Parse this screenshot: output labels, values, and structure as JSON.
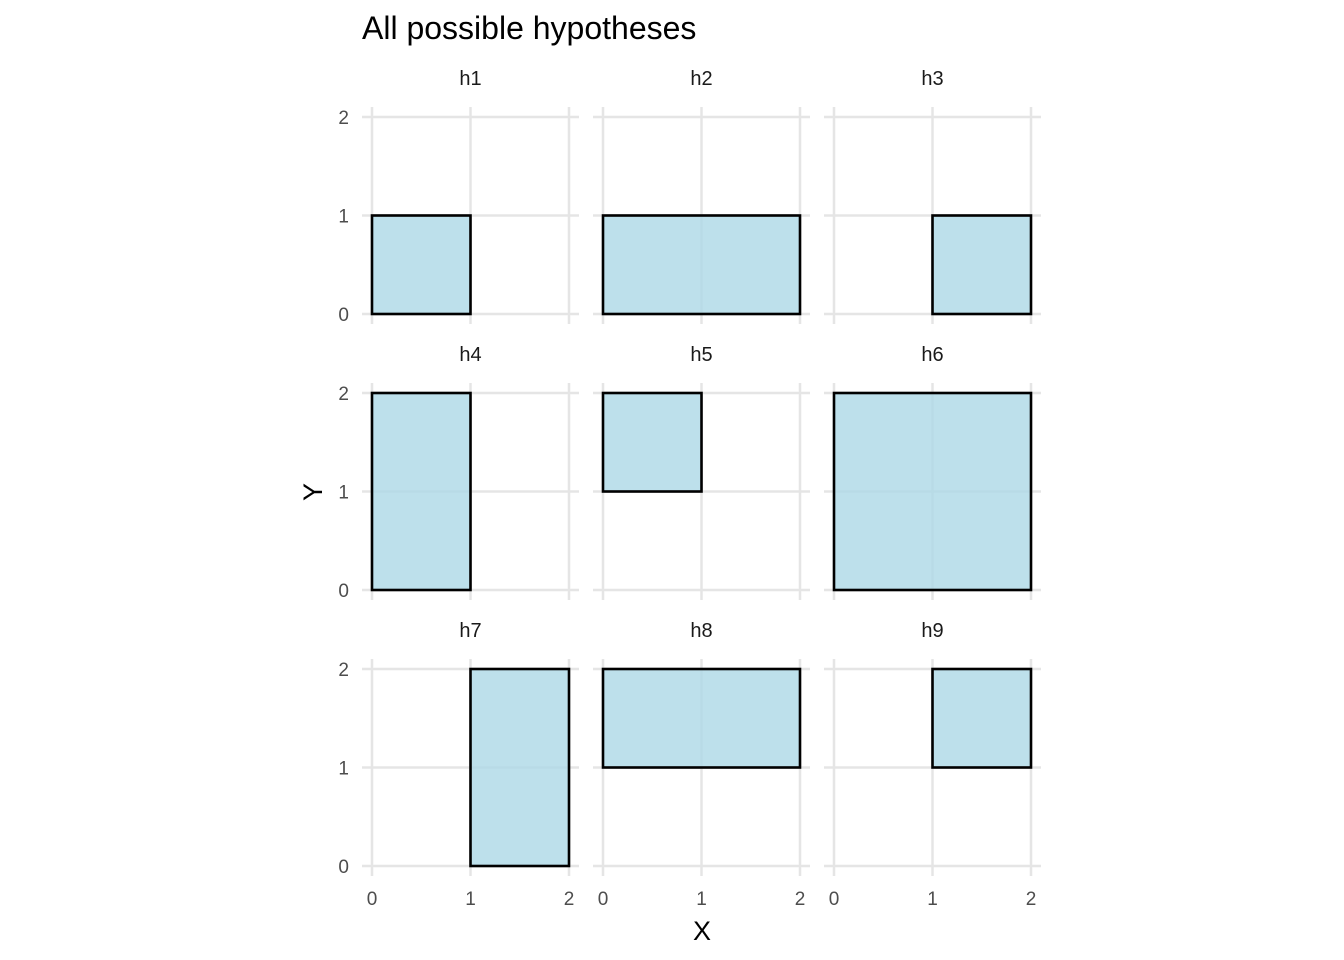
{
  "chart_data": {
    "type": "faceted-rectangles",
    "title": "All possible hypotheses",
    "xlabel": "X",
    "ylabel": "Y",
    "xlim": [
      0,
      2
    ],
    "ylim": [
      0,
      2
    ],
    "x_ticks": [
      "0",
      "1",
      "2"
    ],
    "y_ticks": [
      "0",
      "1",
      "2"
    ],
    "grid": true,
    "fill_color": "#add8e6",
    "stroke_color": "#000000",
    "panels": [
      {
        "name": "h1",
        "xmin": 0,
        "xmax": 1,
        "ymin": 0,
        "ymax": 1
      },
      {
        "name": "h2",
        "xmin": 0,
        "xmax": 2,
        "ymin": 0,
        "ymax": 1
      },
      {
        "name": "h3",
        "xmin": 1,
        "xmax": 2,
        "ymin": 0,
        "ymax": 1
      },
      {
        "name": "h4",
        "xmin": 0,
        "xmax": 1,
        "ymin": 0,
        "ymax": 2
      },
      {
        "name": "h5",
        "xmin": 0,
        "xmax": 1,
        "ymin": 1,
        "ymax": 2
      },
      {
        "name": "h6",
        "xmin": 0,
        "xmax": 2,
        "ymin": 0,
        "ymax": 2
      },
      {
        "name": "h7",
        "xmin": 1,
        "xmax": 2,
        "ymin": 0,
        "ymax": 2
      },
      {
        "name": "h8",
        "xmin": 0,
        "xmax": 2,
        "ymin": 1,
        "ymax": 2
      },
      {
        "name": "h9",
        "xmin": 1,
        "xmax": 2,
        "ymin": 1,
        "ymax": 2
      }
    ]
  }
}
